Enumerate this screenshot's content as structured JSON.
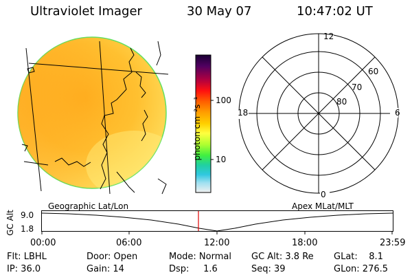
{
  "header": {
    "instrument": "Ultraviolet Imager",
    "date": "30 May 07",
    "time": "10:47:02 UT"
  },
  "globe_caption": "Geographic Lat/Lon",
  "polar": {
    "caption": "Apex MLat/MLT",
    "mlt_labels": {
      "top": "12",
      "left": "18",
      "right": "6",
      "bottom": "0"
    },
    "lat_labels": [
      "60",
      "70",
      "80"
    ]
  },
  "colorbar": {
    "unit_label": "photon cm⁻²s⁻¹",
    "ticks": [
      "100",
      "10"
    ],
    "colors": [
      "#1a0033",
      "#3a0050",
      "#800060",
      "#c00030",
      "#ff1010",
      "#ff6000",
      "#ffa000",
      "#ffd000",
      "#ffff40",
      "#c0ff30",
      "#60ff30",
      "#20e080",
      "#20c0d0",
      "#80e0f0",
      "#e0f0f8"
    ]
  },
  "altitude": {
    "axis_label": "GC Alt",
    "ticks": [
      "9.0",
      "1.8"
    ],
    "time_ticks": [
      "00:00",
      "06:00",
      "12:00",
      "18:00",
      "23:59"
    ],
    "current_time": "10:47"
  },
  "status": {
    "flt": "Flt: LBHL",
    "ip": "IP: 36.0",
    "door": "Door: Open",
    "gain": "Gain: 14",
    "mode": "Mode: Normal",
    "dsp": "Dsp:     1.6",
    "gcalt": "GC Alt: 3.8 Re",
    "seq": "Seq: 39",
    "glat": "GLat:    8.1",
    "glon": "GLon: 276.5"
  }
}
